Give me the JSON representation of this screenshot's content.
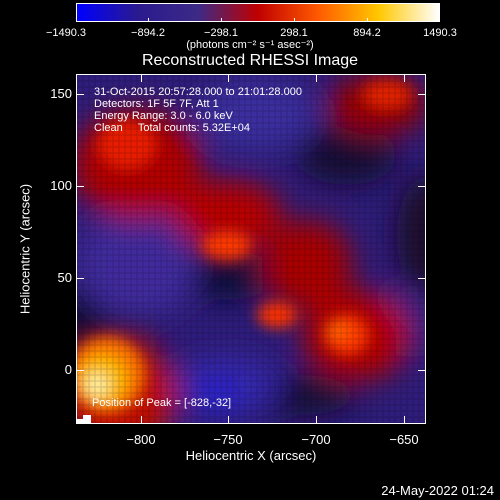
{
  "colorbar": {
    "tick_labels": [
      "−1490.3",
      "−894.2",
      "−298.1",
      "298.1",
      "894.2",
      "1490.3"
    ],
    "colors": [
      "#0000ff",
      "#2a1a8f",
      "#3c2a86",
      "#c00000",
      "#ff5a00",
      "#ffc800",
      "#ffffff"
    ]
  },
  "units_label": "(photons cm⁻² s⁻¹ asec⁻²)",
  "title": "Reconstructed RHESSI Image",
  "info": {
    "time_range": "31-Oct-2015 20:57:28.000 to 21:01:28.000",
    "detectors": "Detectors: 1F 5F 7F, Att 1",
    "energy": "Energy Range: 3.0 - 6.0 keV",
    "clean": "Clean     Total counts: 5.32E+04"
  },
  "peak_label": "Position of Peak = [-828,-32]",
  "axes": {
    "xlabel": "Heliocentric X (arcsec)",
    "ylabel": "Heliocentric Y (arcsec)",
    "xticks": [
      "−800",
      "−750",
      "−700",
      "−650"
    ],
    "yticks": [
      "150",
      "100",
      "50",
      "0"
    ],
    "xlim": [
      -835,
      -635
    ],
    "ylim": [
      -40,
      160
    ]
  },
  "timestamp": "24-May-2022 01:24"
}
